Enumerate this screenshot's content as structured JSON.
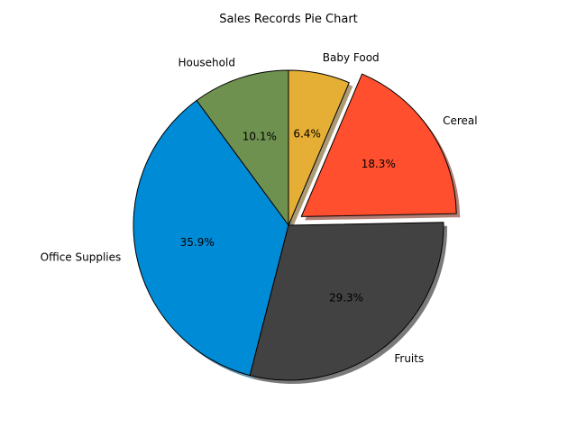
{
  "chart_data": {
    "type": "pie",
    "title": "Sales Records Pie Chart",
    "start_angle_deg": 90,
    "direction": "counterclockwise",
    "shadow": true,
    "slices": [
      {
        "label": "Household",
        "percent": 10.1,
        "percent_label": "10.1%",
        "color": "#6e914f",
        "exploded": false
      },
      {
        "label": "Office Supplies",
        "percent": 35.9,
        "percent_label": "35.9%",
        "color": "#008bd6",
        "exploded": false
      },
      {
        "label": "Fruits",
        "percent": 29.3,
        "percent_label": "29.3%",
        "color": "#424242",
        "exploded": false
      },
      {
        "label": "Cereal",
        "percent": 18.3,
        "percent_label": "18.3%",
        "color": "#ff4f2e",
        "exploded": true
      },
      {
        "label": "Baby Food",
        "percent": 6.4,
        "percent_label": "6.4%",
        "color": "#e5ae35",
        "exploded": false
      }
    ]
  }
}
